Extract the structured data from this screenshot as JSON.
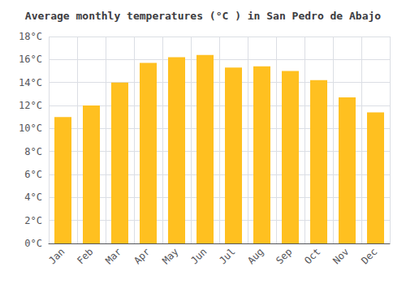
{
  "chart_data": {
    "type": "bar",
    "title": "Average monthly temperatures (°C ) in San Pedro de Abajo",
    "categories": [
      "Jan",
      "Feb",
      "Mar",
      "Apr",
      "May",
      "Jun",
      "Jul",
      "Aug",
      "Sep",
      "Oct",
      "Nov",
      "Dec"
    ],
    "values": [
      11.0,
      12.0,
      14.0,
      15.7,
      16.2,
      16.4,
      15.3,
      15.4,
      15.0,
      14.2,
      12.7,
      11.4
    ],
    "color": "#FFC020",
    "ylim": [
      0,
      18
    ],
    "yticks": [
      {
        "value": 0,
        "label": "0°C"
      },
      {
        "value": 2,
        "label": "2°C"
      },
      {
        "value": 4,
        "label": "4°C"
      },
      {
        "value": 6,
        "label": "6°C"
      },
      {
        "value": 8,
        "label": "8°C"
      },
      {
        "value": 10,
        "label": "10°C"
      },
      {
        "value": 12,
        "label": "12°C"
      },
      {
        "value": 14,
        "label": "14°C"
      },
      {
        "value": 16,
        "label": "16°C"
      },
      {
        "value": 18,
        "label": "18°C"
      }
    ],
    "grid": true
  }
}
